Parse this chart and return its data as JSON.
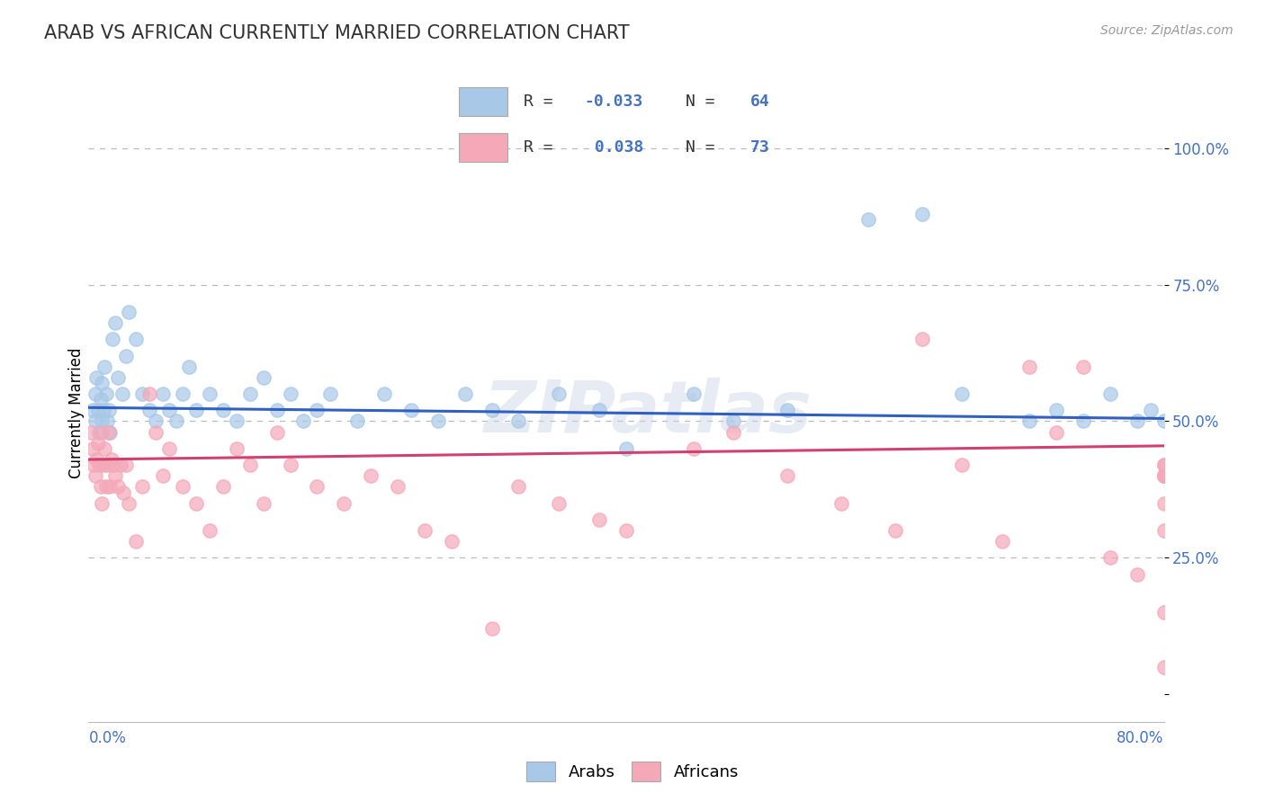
{
  "title": "ARAB VS AFRICAN CURRENTLY MARRIED CORRELATION CHART",
  "source_text": "Source: ZipAtlas.com",
  "ylabel": "Currently Married",
  "xlim": [
    0.0,
    80.0
  ],
  "ylim": [
    -5.0,
    108.0
  ],
  "arab_R": -0.033,
  "arab_N": 64,
  "african_R": 0.038,
  "african_N": 73,
  "arab_color": "#a8c8e8",
  "african_color": "#f4a8b8",
  "arab_line_color": "#3060c0",
  "african_line_color": "#d04070",
  "arab_line_y0": 52.5,
  "arab_line_y1": 50.5,
  "african_line_y0": 43.0,
  "african_line_y1": 45.5,
  "legend_label_arab": "Arabs",
  "legend_label_african": "Africans",
  "arab_x": [
    0.3,
    0.5,
    0.5,
    0.6,
    0.7,
    0.8,
    0.9,
    1.0,
    1.0,
    1.1,
    1.2,
    1.3,
    1.4,
    1.5,
    1.6,
    1.8,
    2.0,
    2.2,
    2.5,
    2.8,
    3.0,
    3.5,
    4.0,
    4.5,
    5.0,
    5.5,
    6.0,
    6.5,
    7.0,
    7.5,
    8.0,
    9.0,
    10.0,
    11.0,
    12.0,
    13.0,
    14.0,
    15.0,
    16.0,
    17.0,
    18.0,
    20.0,
    22.0,
    24.0,
    26.0,
    28.0,
    30.0,
    32.0,
    35.0,
    38.0,
    40.0,
    45.0,
    48.0,
    52.0,
    58.0,
    62.0,
    65.0,
    70.0,
    72.0,
    74.0,
    76.0,
    78.0,
    79.0,
    80.0
  ],
  "arab_y": [
    52.0,
    50.0,
    55.0,
    58.0,
    52.0,
    48.0,
    54.0,
    57.0,
    50.0,
    52.0,
    60.0,
    55.0,
    50.0,
    52.0,
    48.0,
    65.0,
    68.0,
    58.0,
    55.0,
    62.0,
    70.0,
    65.0,
    55.0,
    52.0,
    50.0,
    55.0,
    52.0,
    50.0,
    55.0,
    60.0,
    52.0,
    55.0,
    52.0,
    50.0,
    55.0,
    58.0,
    52.0,
    55.0,
    50.0,
    52.0,
    55.0,
    50.0,
    55.0,
    52.0,
    50.0,
    55.0,
    52.0,
    50.0,
    55.0,
    52.0,
    45.0,
    55.0,
    50.0,
    52.0,
    87.0,
    88.0,
    55.0,
    50.0,
    52.0,
    50.0,
    55.0,
    50.0,
    52.0,
    50.0
  ],
  "african_x": [
    0.2,
    0.3,
    0.4,
    0.5,
    0.6,
    0.7,
    0.8,
    0.9,
    1.0,
    1.0,
    1.1,
    1.2,
    1.3,
    1.4,
    1.5,
    1.6,
    1.7,
    1.8,
    2.0,
    2.2,
    2.4,
    2.6,
    2.8,
    3.0,
    3.5,
    4.0,
    4.5,
    5.0,
    5.5,
    6.0,
    7.0,
    8.0,
    9.0,
    10.0,
    11.0,
    12.0,
    13.0,
    14.0,
    15.0,
    17.0,
    19.0,
    21.0,
    23.0,
    25.0,
    27.0,
    30.0,
    32.0,
    35.0,
    38.0,
    40.0,
    45.0,
    48.0,
    52.0,
    56.0,
    60.0,
    62.0,
    65.0,
    68.0,
    70.0,
    72.0,
    74.0,
    76.0,
    78.0,
    80.0,
    82.0,
    84.0,
    86.0,
    88.0,
    90.0,
    92.0,
    94.0,
    96.0,
    98.0
  ],
  "african_y": [
    48.0,
    45.0,
    42.0,
    40.0,
    43.0,
    46.0,
    42.0,
    38.0,
    35.0,
    48.0,
    42.0,
    45.0,
    38.0,
    42.0,
    48.0,
    38.0,
    43.0,
    42.0,
    40.0,
    38.0,
    42.0,
    37.0,
    42.0,
    35.0,
    28.0,
    38.0,
    55.0,
    48.0,
    40.0,
    45.0,
    38.0,
    35.0,
    30.0,
    38.0,
    45.0,
    42.0,
    35.0,
    48.0,
    42.0,
    38.0,
    35.0,
    40.0,
    38.0,
    30.0,
    28.0,
    12.0,
    38.0,
    35.0,
    32.0,
    30.0,
    45.0,
    48.0,
    40.0,
    35.0,
    30.0,
    65.0,
    42.0,
    28.0,
    60.0,
    48.0,
    60.0,
    25.0,
    22.0,
    5.0,
    15.0,
    40.0,
    42.0,
    30.0,
    35.0,
    40.0,
    42.0,
    40.0,
    40.0
  ]
}
